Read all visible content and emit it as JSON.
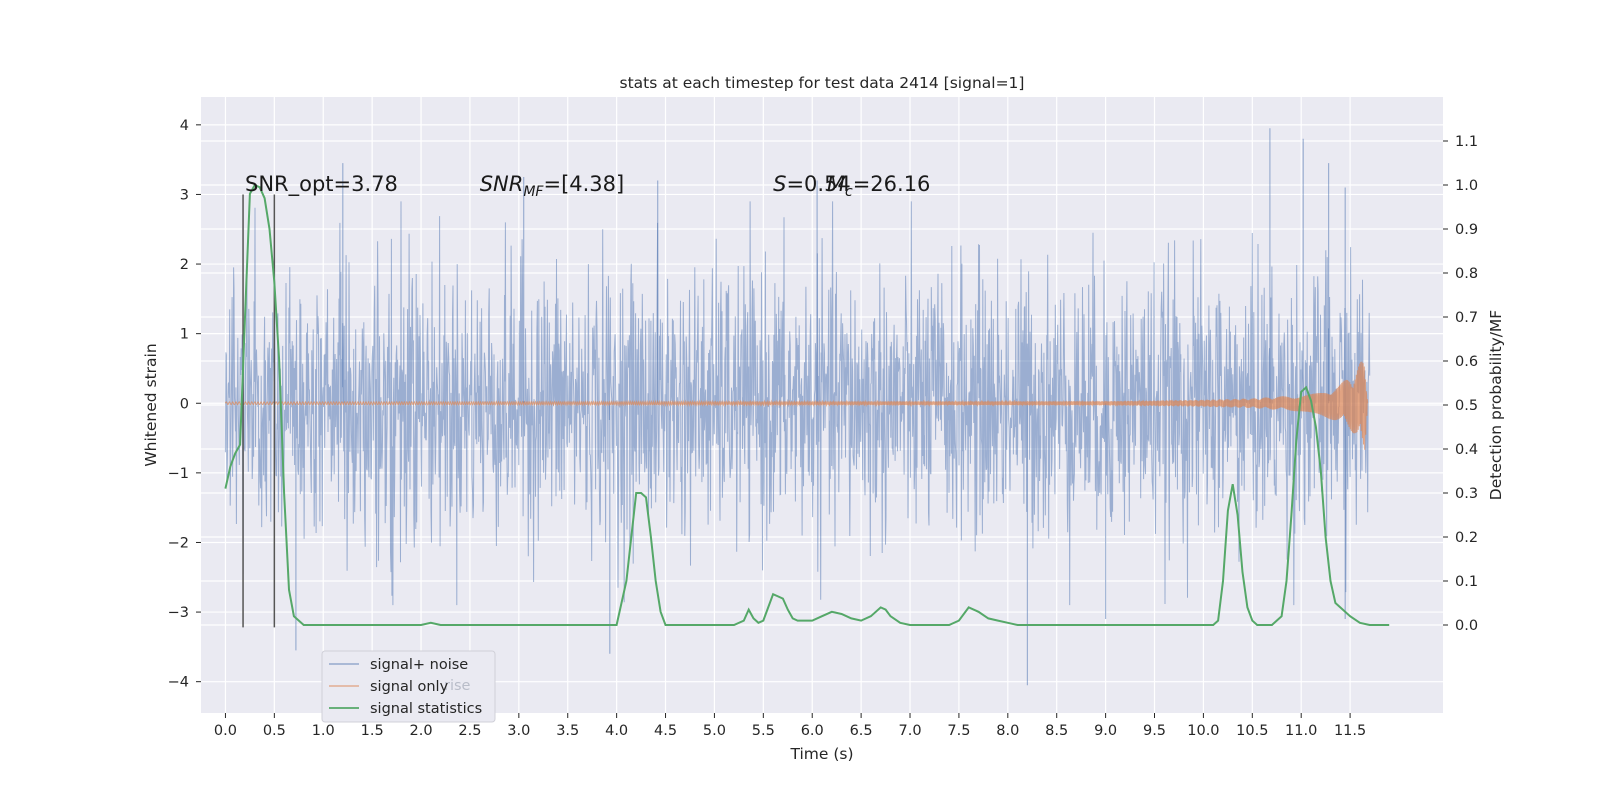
{
  "chart_data": {
    "type": "line",
    "title": "stats at each timestep for test data 2414 [signal=1]",
    "xlabel": "Time (s)",
    "ylabel": "Whitened strain",
    "ylabel_right": "Detection probability/MF",
    "xlim": [
      -0.25,
      12.45
    ],
    "ylim": [
      -4.45,
      4.4
    ],
    "ylim_right": [
      -0.2,
      1.2
    ],
    "xticks": [
      0.0,
      0.5,
      1.0,
      1.5,
      2.0,
      2.5,
      3.0,
      3.5,
      4.0,
      4.5,
      5.0,
      5.5,
      6.0,
      6.5,
      7.0,
      7.5,
      8.0,
      8.5,
      9.0,
      9.5,
      10.0,
      10.5,
      11.0,
      11.5
    ],
    "xtick_labels": [
      "0.0",
      "0.5",
      "1.0",
      "1.5",
      "2.0",
      "2.5",
      "3.0",
      "3.5",
      "4.0",
      "4.5",
      "5.0",
      "5.5",
      "6.0",
      "6.5",
      "7.0",
      "7.5",
      "8.0",
      "8.5",
      "9.0",
      "9.5",
      "10.0",
      "10.5",
      "11.0",
      "11.5"
    ],
    "yticks": [
      -4,
      -3,
      -2,
      -1,
      0,
      1,
      2,
      3,
      4
    ],
    "ytick_labels": [
      "−4",
      "−3",
      "−2",
      "−1",
      "0",
      "1",
      "2",
      "3",
      "4"
    ],
    "yticks_right": [
      0.0,
      0.1,
      0.2,
      0.3,
      0.4,
      0.5,
      0.6,
      0.7,
      0.8,
      0.9,
      1.0,
      1.1
    ],
    "ytick_labels_right": [
      "0.0",
      "0.1",
      "0.2",
      "0.3",
      "0.4",
      "0.5",
      "0.6",
      "0.7",
      "0.8",
      "0.9",
      "1.0",
      "1.1"
    ],
    "grid": true,
    "legend_position": "lower-left",
    "annotations": [
      {
        "id": "snr-opt",
        "text": "SNR_opt=3.78",
        "x": 0.2,
        "y": 3.05
      },
      {
        "id": "snr-mf",
        "text": "SNR_MF=[4.38]",
        "x": 2.6,
        "y": 3.05
      },
      {
        "id": "stat-s",
        "text": "S=0.54",
        "x": 5.6,
        "y": 3.05
      },
      {
        "id": "mc",
        "text": "M_c=26.16",
        "x": 6.15,
        "y": 3.05
      }
    ],
    "vlines": [
      {
        "x": 0.18,
        "ymin": -3.22,
        "ymax": 3.0
      },
      {
        "x": 0.5,
        "ymin": -3.22,
        "ymax": 3.0
      }
    ],
    "series": [
      {
        "name": "signal+ noise",
        "axis": "left",
        "color": "#4c72b0",
        "alpha": 0.5,
        "x_range": [
          0.0,
          11.7
        ],
        "typical_band": [
          -1.8,
          1.8
        ],
        "notable_peaks": [
          {
            "x": 1.2,
            "y": 3.45
          },
          {
            "x": 3.05,
            "y": 3.25
          },
          {
            "x": 4.42,
            "y": 3.2
          },
          {
            "x": 6.05,
            "y": 3.2
          },
          {
            "x": 10.68,
            "y": 3.95
          },
          {
            "x": 11.02,
            "y": 3.8
          },
          {
            "x": 11.28,
            "y": 3.45
          },
          {
            "x": 11.45,
            "y": 3.1
          },
          {
            "x": 0.72,
            "y": -3.55
          },
          {
            "x": 3.93,
            "y": -3.6
          },
          {
            "x": 8.2,
            "y": -4.05
          },
          {
            "x": 9.0,
            "y": -3.1
          },
          {
            "x": 11.45,
            "y": -3.1
          }
        ]
      },
      {
        "name": "signal only",
        "axis": "left",
        "color": "#dd8452",
        "x": [
          0.0,
          9.0,
          10.0,
          10.5,
          11.0,
          11.2,
          11.4,
          11.55,
          11.65,
          11.68
        ],
        "envelope": [
          0.02,
          0.03,
          0.05,
          0.07,
          0.12,
          0.18,
          0.28,
          0.45,
          0.7,
          0.0
        ]
      },
      {
        "name": "signal statistics",
        "axis": "right",
        "color": "#55a868",
        "x": [
          0.0,
          0.05,
          0.1,
          0.15,
          0.2,
          0.25,
          0.3,
          0.35,
          0.4,
          0.45,
          0.5,
          0.55,
          0.6,
          0.65,
          0.7,
          0.8,
          1.0,
          1.5,
          2.0,
          2.1,
          2.2,
          2.3,
          2.5,
          3.0,
          3.5,
          4.0,
          4.1,
          4.15,
          4.2,
          4.25,
          4.3,
          4.35,
          4.4,
          4.45,
          4.5,
          4.6,
          4.8,
          5.0,
          5.2,
          5.3,
          5.35,
          5.4,
          5.45,
          5.5,
          5.55,
          5.6,
          5.65,
          5.7,
          5.75,
          5.8,
          5.85,
          5.9,
          6.0,
          6.1,
          6.2,
          6.3,
          6.4,
          6.5,
          6.6,
          6.7,
          6.75,
          6.8,
          6.9,
          7.0,
          7.2,
          7.4,
          7.5,
          7.6,
          7.7,
          7.8,
          7.9,
          8.0,
          8.1,
          8.2,
          8.4,
          8.6,
          8.8,
          9.0,
          9.5,
          10.0,
          10.1,
          10.15,
          10.2,
          10.25,
          10.3,
          10.35,
          10.4,
          10.45,
          10.5,
          10.55,
          10.6,
          10.7,
          10.8,
          10.85,
          10.9,
          10.95,
          11.0,
          11.05,
          11.1,
          11.15,
          11.2,
          11.25,
          11.3,
          11.35,
          11.4,
          11.5,
          11.6,
          11.7,
          11.8,
          11.9
        ],
        "values": [
          0.31,
          0.36,
          0.39,
          0.41,
          0.7,
          0.98,
          1.0,
          0.995,
          0.97,
          0.9,
          0.78,
          0.6,
          0.3,
          0.08,
          0.02,
          0.0,
          0.0,
          0.0,
          0.0,
          0.005,
          0.0,
          0.0,
          0.0,
          0.0,
          0.0,
          0.0,
          0.1,
          0.2,
          0.3,
          0.3,
          0.29,
          0.2,
          0.1,
          0.03,
          0.0,
          0.0,
          0.0,
          0.0,
          0.0,
          0.01,
          0.035,
          0.015,
          0.005,
          0.01,
          0.04,
          0.07,
          0.065,
          0.06,
          0.035,
          0.015,
          0.01,
          0.01,
          0.01,
          0.02,
          0.03,
          0.025,
          0.015,
          0.01,
          0.02,
          0.04,
          0.035,
          0.02,
          0.005,
          0.0,
          0.0,
          0.0,
          0.01,
          0.04,
          0.03,
          0.015,
          0.01,
          0.005,
          0.0,
          0.0,
          0.0,
          0.0,
          0.0,
          0.0,
          0.0,
          0.0,
          0.0,
          0.01,
          0.1,
          0.26,
          0.32,
          0.25,
          0.12,
          0.04,
          0.01,
          0.0,
          0.0,
          0.0,
          0.02,
          0.1,
          0.25,
          0.42,
          0.53,
          0.54,
          0.51,
          0.45,
          0.35,
          0.2,
          0.1,
          0.05,
          0.04,
          0.02,
          0.005,
          0.0,
          0.0,
          0.0
        ]
      }
    ]
  },
  "legend": {
    "items": [
      "signal+ noise",
      "signal only",
      "signal statistics"
    ],
    "hidden_text": "rise"
  },
  "colors": {
    "figure_bg": "#ffffff",
    "axes_bg": "#eaeaf2",
    "grid": "#ffffff",
    "text": "#262626"
  }
}
